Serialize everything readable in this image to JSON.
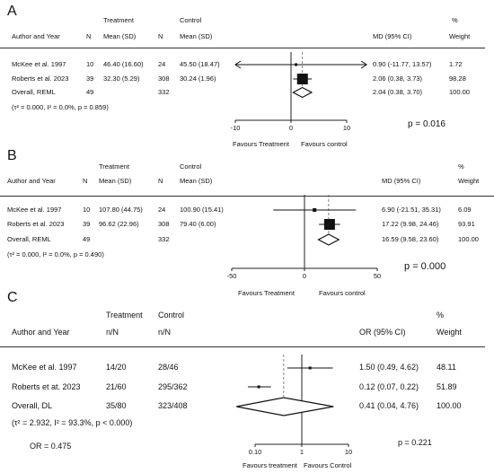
{
  "chart_data": [
    {
      "type": "forest",
      "panel": "A",
      "headers": {
        "author": "Author and Year",
        "n1": "N",
        "mean1": "Mean (SD)",
        "n2": "N",
        "mean2": "Mean (SD)",
        "group1": "Treatment",
        "group2": "Control",
        "effect": "MD (95% CI)",
        "weight_top": "%",
        "weight": "Weight"
      },
      "rows": [
        {
          "author": "McKee et al. 1997",
          "n1": "10",
          "mean1": "46.40 (16.60)",
          "n2": "24",
          "mean2": "45.50 (18.47)",
          "est": 0.9,
          "lo": -11.77,
          "hi": 13.57,
          "ci": "0.90 (-11.77, 13.57)",
          "weight": "1.72",
          "arrows": true
        },
        {
          "author": "Roberts et al. 2023",
          "n1": "39",
          "mean1": "32.30 (5.29)",
          "n2": "308",
          "mean2": "30.24 (1.96)",
          "est": 2.06,
          "lo": 0.38,
          "hi": 3.73,
          "ci": "2.06 (0.38, 3.73)",
          "weight": "98.28"
        },
        {
          "author": "Overall, REML",
          "n1": "49",
          "mean1": "",
          "n2": "332",
          "mean2": "",
          "est": 2.04,
          "lo": 0.38,
          "hi": 3.7,
          "ci": "2.04 (0.38, 3.70)",
          "weight": "100.00",
          "overall": true
        }
      ],
      "heterogeneity": "(τ² = 0.000, I² = 0.0%, p = 0.859)",
      "x_ticks": [
        -10,
        0,
        10
      ],
      "x_range": [
        -10,
        10
      ],
      "null_line": 0,
      "favours_left": "Favours Treatment",
      "favours_right": "Favours control",
      "p_value": "p = 0.016"
    },
    {
      "type": "forest",
      "panel": "B",
      "headers": {
        "author": "Author and Year",
        "n1": "N",
        "mean1": "Mean (SD)",
        "n2": "N",
        "mean2": "Mean (SD)",
        "group1": "Treatment",
        "group2": "Control",
        "effect": "MD (95% CI)",
        "weight_top": "%",
        "weight": "Weight"
      },
      "rows": [
        {
          "author": "McKee et al. 1997",
          "n1": "10",
          "mean1": "107.80 (44.75)",
          "n2": "24",
          "mean2": "100.90 (15.41)",
          "est": 6.9,
          "lo": -21.51,
          "hi": 35.31,
          "ci": "6.90 (-21.51, 35.31)",
          "weight": "6.09"
        },
        {
          "author": "Roberts et al. 2023",
          "n1": "39",
          "mean1": "96.62 (22.96)",
          "n2": "308",
          "mean2": "79.40 (6.00)",
          "est": 17.22,
          "lo": 9.98,
          "hi": 24.46,
          "ci": "17.22 (9.98, 24.46)",
          "weight": "93.91"
        },
        {
          "author": "Overall, REML",
          "n1": "49",
          "mean1": "",
          "n2": "332",
          "mean2": "",
          "est": 16.59,
          "lo": 9.58,
          "hi": 23.6,
          "ci": "16.59 (9.58, 23.60)",
          "weight": "100.00",
          "overall": true
        }
      ],
      "heterogeneity": "(τ² = 0.000, I² = 0.0%, p = 0.490)",
      "x_ticks": [
        -50,
        0,
        50
      ],
      "x_range": [
        -50,
        50
      ],
      "null_line": 0,
      "favours_left": "Favours Treatment",
      "favours_right": "Favours control",
      "p_value": "p = 0.000"
    },
    {
      "type": "forest",
      "panel": "C",
      "headers": {
        "author": "Author and Year",
        "n1": "n/N",
        "n2": "n/N",
        "group1": "Treatment",
        "group2": "Control",
        "effect": "OR (95% CI)",
        "weight_top": "%",
        "weight": "Weight"
      },
      "rows": [
        {
          "author": "McKee et al. 1997",
          "n1": "14/20",
          "n2": "28/46",
          "est": 1.5,
          "lo": 0.49,
          "hi": 4.62,
          "ci": "1.50 (0.49, 4.62)",
          "weight": "48.11"
        },
        {
          "author": "Roberts et at. 2023",
          "n1": "21/60",
          "n2": "295/362",
          "est": 0.12,
          "lo": 0.07,
          "hi": 0.22,
          "ci": "0.12 (0.07, 0.22)",
          "weight": "51.89"
        },
        {
          "author": "Overall, DL",
          "n1": "35/80",
          "n2": "323/408",
          "est": 0.41,
          "lo": 0.04,
          "hi": 4.76,
          "ci": "0.41 (0.04, 4.76)",
          "weight": "100.00",
          "overall": true
        }
      ],
      "heterogeneity": "(τ² = 2.932, I² = 93.3%, p < 0.000)",
      "x_ticks": [
        0.1,
        1,
        10
      ],
      "x_tick_labels": [
        "0.10",
        "1",
        "10"
      ],
      "x_scale": "log",
      "x_range": [
        0.1,
        10
      ],
      "null_line": 1,
      "favours_left": "Favours treatment",
      "favours_right": "Favours Control",
      "p_value": "p = 0.221",
      "or_label": "OR = 0.475"
    }
  ]
}
